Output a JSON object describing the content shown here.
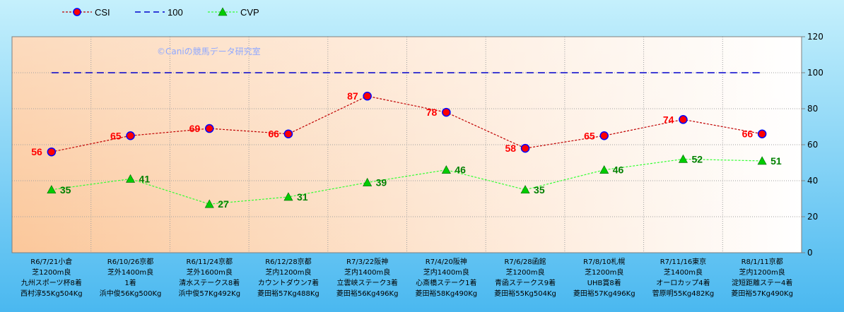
{
  "chart_data": {
    "type": "line",
    "watermark": "©Caniの競馬データ研究室",
    "categories": [
      [
        "R6/7/21小倉",
        "芝1200m良",
        "九州スポーツ杯8着",
        "西村淳55Kg504Kg"
      ],
      [
        "R6/10/26京都",
        "芝外1400m良",
        "1着",
        "浜中俊56Kg500Kg"
      ],
      [
        "R6/11/24京都",
        "芝外1600m良",
        "清水ステークス8着",
        "浜中俊57Kg492Kg"
      ],
      [
        "R6/12/28京都",
        "芝内1200m良",
        "カウントダウン7着",
        "菱田裕57Kg488Kg"
      ],
      [
        "R7/3/22阪神",
        "芝内1400m良",
        "立雲峡ステーク3着",
        "菱田裕56Kg496Kg"
      ],
      [
        "R7/4/20阪神",
        "芝内1400m良",
        "心斎橋ステーク1着",
        "菱田裕58Kg490Kg"
      ],
      [
        "R7/6/28函館",
        "芝1200m良",
        "青函ステークス9着",
        "菱田裕55Kg504Kg"
      ],
      [
        "R7/8/10札幌",
        "芝1200m良",
        "UHB賞8着",
        "菱田裕57Kg496Kg"
      ],
      [
        "R7/11/16東京",
        "芝1400m良",
        "オーロカップ4着",
        "菅原明55Kg482Kg"
      ],
      [
        "R8/1/11京都",
        "芝内1200m良",
        "淀短距離ステー4着",
        "菱田裕57Kg490Kg"
      ]
    ],
    "series": [
      {
        "name": "CSI",
        "values": [
          56,
          65,
          69,
          66,
          87,
          78,
          58,
          65,
          74,
          66
        ],
        "color": "#c00000",
        "marker_color": "#ff0000",
        "marker_edge": "#0000ff",
        "marker": "circle",
        "line_style": "dotted",
        "label_color": "#ff0000"
      },
      {
        "name": "100",
        "values": [
          100,
          100,
          100,
          100,
          100,
          100,
          100,
          100,
          100,
          100
        ],
        "color": "#0000cc",
        "line_style": "dashed"
      },
      {
        "name": "CVP",
        "values": [
          35,
          41,
          27,
          31,
          39,
          46,
          35,
          46,
          52,
          51
        ],
        "color": "#33ff33",
        "marker_color": "#00cc00",
        "marker": "triangle",
        "line_style": "dotted",
        "label_color": "#008000"
      }
    ],
    "y_axis": {
      "position": "right",
      "ylim": [
        0,
        120
      ],
      "ticks": [
        0,
        20,
        40,
        60,
        80,
        100,
        120
      ]
    },
    "grid": true,
    "legend": "top-left",
    "colors": {
      "outer_bg_top": "#c5f0fc",
      "outer_bg_bottom": "#4ab8f0",
      "plot_bg_left": "#fbc79a",
      "plot_bg_right": "#ffffff"
    }
  }
}
